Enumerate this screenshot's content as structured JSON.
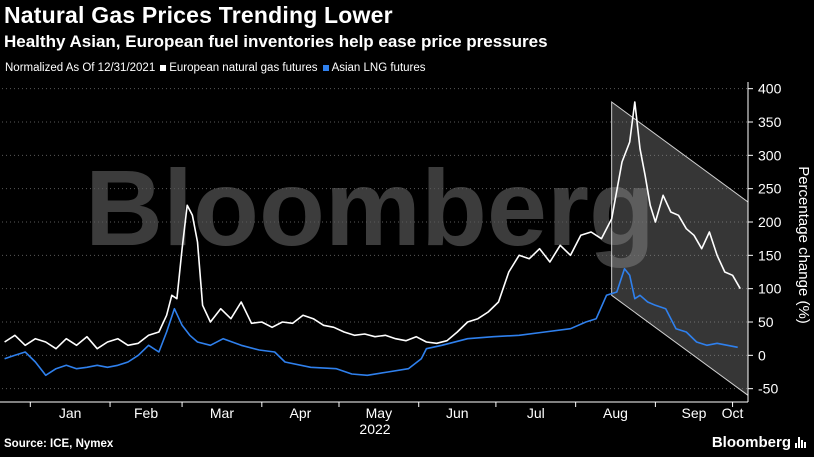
{
  "header": {
    "title": "Natural Gas Prices Trending Lower",
    "subtitle": "Healthy Asian, European fuel inventories help ease price pressures"
  },
  "legend": {
    "note": "Normalized As Of 12/31/2021",
    "items": [
      {
        "label": "European natural gas futures",
        "color": "#ffffff"
      },
      {
        "label": "Asian LNG futures",
        "color": "#2f80ed"
      }
    ]
  },
  "footer": {
    "source": "Source: ICE, Nymex",
    "brand": "Bloomberg"
  },
  "watermark": "Bloomberg",
  "chart_data": {
    "type": "line",
    "xlabel": "2022",
    "ylabel": "Percentage change (%)",
    "ylim": [
      -70,
      410
    ],
    "yticks": [
      400,
      350,
      300,
      250,
      200,
      150,
      100,
      50,
      0,
      -50
    ],
    "xticks": [
      "Jan",
      "Feb",
      "Mar",
      "Apr",
      "May",
      "Jun",
      "Jul",
      "Aug",
      "Sep",
      "Oct"
    ],
    "x_tick_dates": [
      "2022-01-01",
      "2022-02-01",
      "2022-03-01",
      "2022-04-01",
      "2022-05-01",
      "2022-06-01",
      "2022-07-01",
      "2022-08-01",
      "2022-09-01",
      "2022-10-01"
    ],
    "x_range": [
      "2021-12-21",
      "2022-10-07"
    ],
    "grid": "horizontal dashed",
    "y_axis_position": "right",
    "series": [
      {
        "name": "European natural gas futures",
        "color": "#ffffff",
        "x": [
          "2021-12-22",
          "2021-12-26",
          "2021-12-30",
          "2022-01-03",
          "2022-01-07",
          "2022-01-11",
          "2022-01-15",
          "2022-01-19",
          "2022-01-23",
          "2022-01-27",
          "2022-01-31",
          "2022-02-04",
          "2022-02-08",
          "2022-02-12",
          "2022-02-16",
          "2022-02-20",
          "2022-02-23",
          "2022-02-25",
          "2022-02-27",
          "2022-03-01",
          "2022-03-03",
          "2022-03-05",
          "2022-03-07",
          "2022-03-09",
          "2022-03-12",
          "2022-03-16",
          "2022-03-20",
          "2022-03-24",
          "2022-03-28",
          "2022-04-01",
          "2022-04-05",
          "2022-04-09",
          "2022-04-13",
          "2022-04-17",
          "2022-04-21",
          "2022-04-25",
          "2022-04-29",
          "2022-05-03",
          "2022-05-07",
          "2022-05-11",
          "2022-05-15",
          "2022-05-19",
          "2022-05-23",
          "2022-05-27",
          "2022-05-31",
          "2022-06-04",
          "2022-06-08",
          "2022-06-12",
          "2022-06-16",
          "2022-06-20",
          "2022-06-24",
          "2022-06-28",
          "2022-07-02",
          "2022-07-06",
          "2022-07-10",
          "2022-07-14",
          "2022-07-18",
          "2022-07-22",
          "2022-07-26",
          "2022-07-30",
          "2022-08-03",
          "2022-08-07",
          "2022-08-11",
          "2022-08-15",
          "2022-08-19",
          "2022-08-22",
          "2022-08-24",
          "2022-08-26",
          "2022-08-28",
          "2022-08-30",
          "2022-09-01",
          "2022-09-04",
          "2022-09-07",
          "2022-09-10",
          "2022-09-13",
          "2022-09-16",
          "2022-09-19",
          "2022-09-22",
          "2022-09-25",
          "2022-09-28",
          "2022-10-01",
          "2022-10-04"
        ],
        "values": [
          20,
          30,
          15,
          25,
          20,
          10,
          25,
          15,
          28,
          10,
          20,
          25,
          15,
          18,
          30,
          35,
          60,
          90,
          85,
          160,
          225,
          210,
          170,
          75,
          50,
          70,
          55,
          80,
          48,
          50,
          42,
          50,
          48,
          60,
          55,
          45,
          42,
          35,
          30,
          32,
          28,
          30,
          25,
          22,
          28,
          20,
          18,
          22,
          35,
          50,
          55,
          65,
          80,
          125,
          150,
          145,
          160,
          140,
          165,
          150,
          180,
          185,
          175,
          205,
          290,
          320,
          380,
          310,
          270,
          225,
          200,
          240,
          215,
          210,
          190,
          180,
          160,
          185,
          150,
          125,
          120,
          100
        ]
      },
      {
        "name": "Asian LNG futures",
        "color": "#2f80ed",
        "x": [
          "2021-12-22",
          "2021-12-26",
          "2021-12-30",
          "2022-01-03",
          "2022-01-07",
          "2022-01-11",
          "2022-01-15",
          "2022-01-19",
          "2022-01-23",
          "2022-01-27",
          "2022-01-31",
          "2022-02-04",
          "2022-02-08",
          "2022-02-12",
          "2022-02-16",
          "2022-02-20",
          "2022-02-23",
          "2022-02-26",
          "2022-03-01",
          "2022-03-04",
          "2022-03-07",
          "2022-03-12",
          "2022-03-17",
          "2022-03-24",
          "2022-03-31",
          "2022-04-06",
          "2022-04-10",
          "2022-04-20",
          "2022-04-30",
          "2022-05-06",
          "2022-05-12",
          "2022-05-20",
          "2022-05-28",
          "2022-06-02",
          "2022-06-04",
          "2022-06-10",
          "2022-06-20",
          "2022-06-30",
          "2022-07-10",
          "2022-07-20",
          "2022-07-30",
          "2022-08-05",
          "2022-08-09",
          "2022-08-13",
          "2022-08-17",
          "2022-08-20",
          "2022-08-22",
          "2022-08-24",
          "2022-08-26",
          "2022-08-29",
          "2022-09-01",
          "2022-09-05",
          "2022-09-09",
          "2022-09-13",
          "2022-09-17",
          "2022-09-21",
          "2022-09-25",
          "2022-09-29",
          "2022-10-03"
        ],
        "values": [
          -5,
          0,
          5,
          -10,
          -30,
          -20,
          -15,
          -20,
          -18,
          -15,
          -18,
          -15,
          -10,
          0,
          15,
          5,
          35,
          70,
          45,
          30,
          20,
          15,
          25,
          15,
          8,
          5,
          -10,
          -18,
          -20,
          -28,
          -30,
          -25,
          -20,
          -5,
          10,
          15,
          25,
          28,
          30,
          35,
          40,
          50,
          55,
          90,
          95,
          130,
          120,
          85,
          90,
          80,
          75,
          70,
          40,
          35,
          20,
          15,
          18,
          15,
          12
        ]
      }
    ]
  }
}
